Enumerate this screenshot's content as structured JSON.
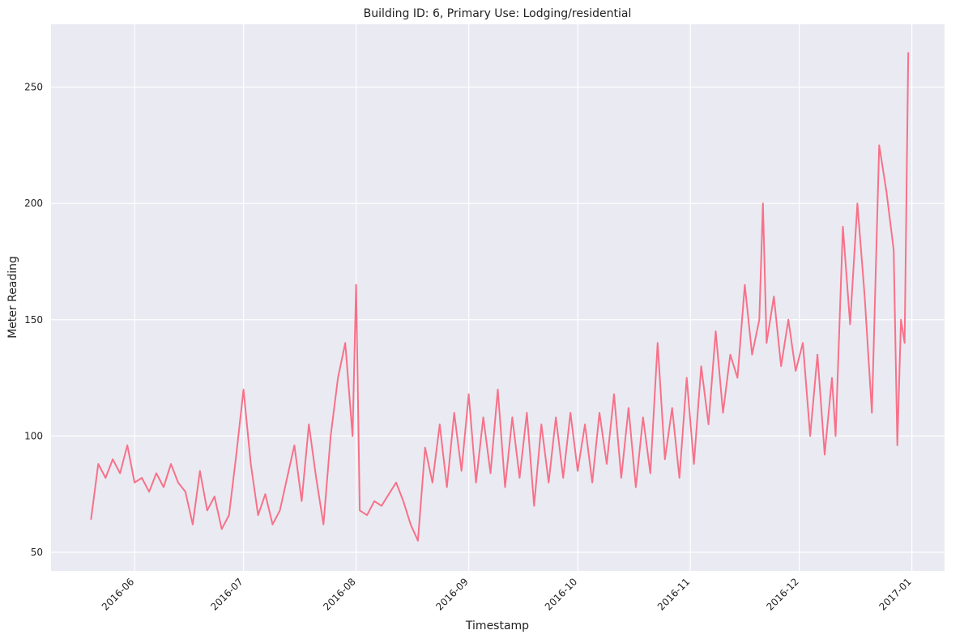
{
  "chart_data": {
    "type": "line",
    "title": "Building ID: 6, Primary Use: Lodging/residential",
    "x_label": "Timestamp",
    "y_label": "Meter Reading",
    "x": [
      "2016-05-20",
      "2016-05-22",
      "2016-05-24",
      "2016-05-26",
      "2016-05-28",
      "2016-05-30",
      "2016-06-01",
      "2016-06-03",
      "2016-06-05",
      "2016-06-07",
      "2016-06-09",
      "2016-06-11",
      "2016-06-13",
      "2016-06-15",
      "2016-06-17",
      "2016-06-19",
      "2016-06-21",
      "2016-06-23",
      "2016-06-25",
      "2016-06-27",
      "2016-06-29",
      "2016-07-01",
      "2016-07-03",
      "2016-07-05",
      "2016-07-07",
      "2016-07-09",
      "2016-07-11",
      "2016-07-13",
      "2016-07-15",
      "2016-07-17",
      "2016-07-19",
      "2016-07-21",
      "2016-07-23",
      "2016-07-25",
      "2016-07-27",
      "2016-07-29",
      "2016-07-31",
      "2016-08-01",
      "2016-08-02",
      "2016-08-04",
      "2016-08-06",
      "2016-08-08",
      "2016-08-10",
      "2016-08-12",
      "2016-08-14",
      "2016-08-16",
      "2016-08-18",
      "2016-08-20",
      "2016-08-22",
      "2016-08-24",
      "2016-08-26",
      "2016-08-28",
      "2016-08-30",
      "2016-09-01",
      "2016-09-03",
      "2016-09-05",
      "2016-09-07",
      "2016-09-09",
      "2016-09-11",
      "2016-09-13",
      "2016-09-15",
      "2016-09-17",
      "2016-09-19",
      "2016-09-21",
      "2016-09-23",
      "2016-09-25",
      "2016-09-27",
      "2016-09-29",
      "2016-10-01",
      "2016-10-03",
      "2016-10-05",
      "2016-10-07",
      "2016-10-09",
      "2016-10-11",
      "2016-10-13",
      "2016-10-15",
      "2016-10-17",
      "2016-10-19",
      "2016-10-21",
      "2016-10-23",
      "2016-10-25",
      "2016-10-27",
      "2016-10-29",
      "2016-10-31",
      "2016-11-02",
      "2016-11-04",
      "2016-11-06",
      "2016-11-08",
      "2016-11-10",
      "2016-11-12",
      "2016-11-14",
      "2016-11-16",
      "2016-11-18",
      "2016-11-20",
      "2016-11-21",
      "2016-11-22",
      "2016-11-24",
      "2016-11-26",
      "2016-11-28",
      "2016-11-30",
      "2016-12-02",
      "2016-12-04",
      "2016-12-06",
      "2016-12-08",
      "2016-12-10",
      "2016-12-11",
      "2016-12-13",
      "2016-12-15",
      "2016-12-17",
      "2016-12-19",
      "2016-12-21",
      "2016-12-23",
      "2016-12-25",
      "2016-12-27",
      "2016-12-28",
      "2016-12-29",
      "2016-12-30",
      "2016-12-31"
    ],
    "series": [
      {
        "color": "#f77189",
        "values": [
          64,
          88,
          82,
          90,
          84,
          96,
          80,
          82,
          76,
          84,
          78,
          88,
          80,
          76,
          62,
          85,
          68,
          74,
          60,
          66,
          92,
          120,
          88,
          66,
          75,
          62,
          68,
          82,
          96,
          72,
          105,
          82,
          62,
          100,
          125,
          140,
          100,
          165,
          68,
          66,
          72,
          70,
          75,
          80,
          72,
          62,
          55,
          95,
          80,
          105,
          78,
          110,
          85,
          118,
          80,
          108,
          84,
          120,
          78,
          108,
          82,
          110,
          70,
          105,
          80,
          108,
          82,
          110,
          85,
          105,
          80,
          110,
          88,
          118,
          82,
          112,
          78,
          108,
          84,
          140,
          90,
          112,
          82,
          125,
          88,
          130,
          105,
          145,
          110,
          135,
          125,
          165,
          135,
          150,
          200,
          140,
          160,
          130,
          150,
          128,
          140,
          100,
          135,
          92,
          125,
          100,
          190,
          148,
          200,
          160,
          110,
          225,
          205,
          180,
          96,
          150,
          140,
          265
        ]
      }
    ],
    "xlim": [
      "2016-05-09",
      "2017-01-10"
    ],
    "xticks": [
      {
        "value": "2016-06-01",
        "label": "2016-06"
      },
      {
        "value": "2016-07-01",
        "label": "2016-07"
      },
      {
        "value": "2016-08-01",
        "label": "2016-08"
      },
      {
        "value": "2016-09-01",
        "label": "2016-09"
      },
      {
        "value": "2016-10-01",
        "label": "2016-10"
      },
      {
        "value": "2016-11-01",
        "label": "2016-11"
      },
      {
        "value": "2016-12-01",
        "label": "2016-12"
      },
      {
        "value": "2017-01-01",
        "label": "2017-01"
      }
    ],
    "ylim": [
      42,
      277
    ],
    "yticks": [
      50,
      100,
      150,
      200,
      250
    ],
    "grid": true
  }
}
